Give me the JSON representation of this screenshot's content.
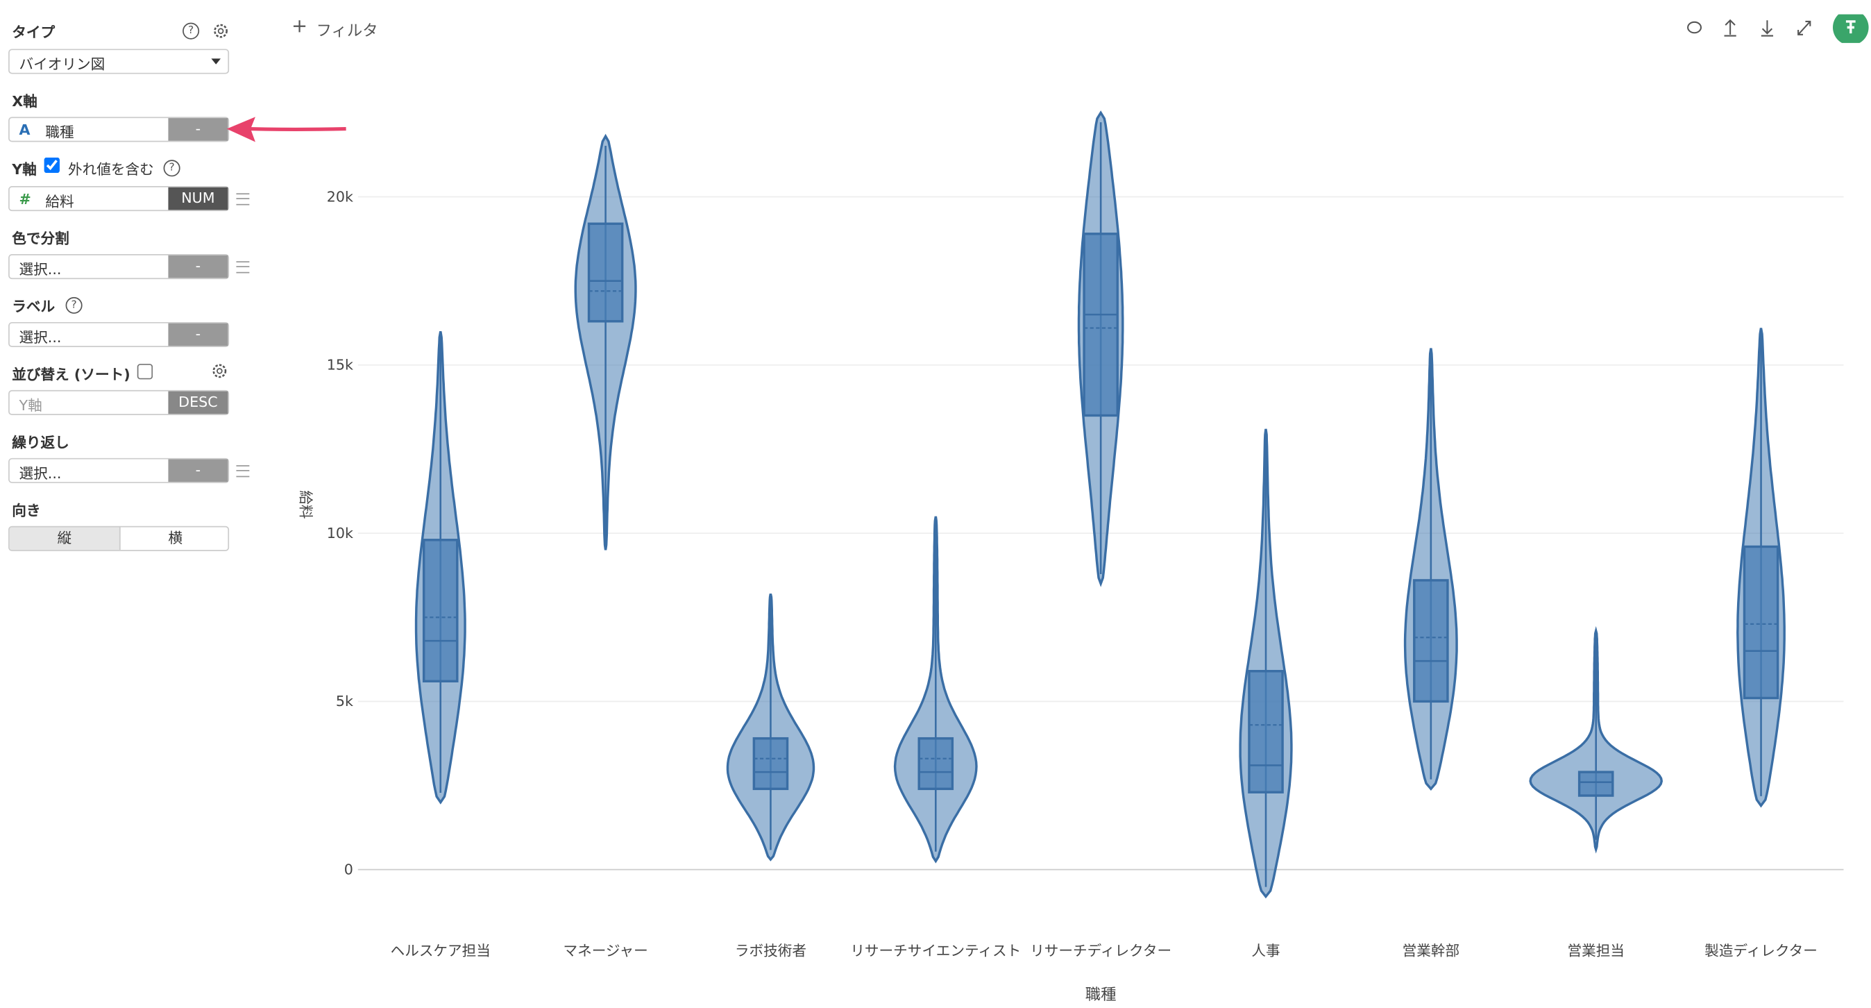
{
  "sidebar": {
    "type_label": "タイプ",
    "type_value": "バイオリン図",
    "x_label": "X軸",
    "x_field_icon": "A",
    "x_field": "職種",
    "x_button": "-",
    "y_label": "Y軸",
    "outliers_checked": true,
    "outliers_label": "外れ値を含む",
    "y_field_icon": "#",
    "y_field": "給料",
    "y_button": "NUM",
    "color_label": "色で分割",
    "color_placeholder": "選択...",
    "color_button": "-",
    "label_label": "ラベル",
    "label_placeholder": "選択...",
    "label_button": "-",
    "sort_label": "並び替え (ソート)",
    "sort_checked": false,
    "sort_placeholder": "Y軸",
    "sort_button": "DESC",
    "repeat_label": "繰り返し",
    "repeat_placeholder": "選択...",
    "repeat_button": "-",
    "orient_label": "向き",
    "orient_options": [
      "縦",
      "横"
    ]
  },
  "toolbar": {
    "filter": "フィルタ"
  },
  "chart_data": {
    "type": "violin",
    "x_label": "職種",
    "y_label": "給料",
    "color": "#3a6ea5",
    "categories": [
      "ヘルスケア担当",
      "マネージャー",
      "ラボ技術者",
      "リサーチサイエンティスト",
      "リサーチディレクター",
      "人事",
      "営業幹部",
      "営業担当",
      "製造ディレクター"
    ],
    "min": [
      2000,
      9500,
      300,
      250,
      8500,
      -800,
      2400,
      600,
      1900
    ],
    "q1": [
      5600,
      16300,
      2400,
      2400,
      13500,
      2300,
      5000,
      2200,
      5100
    ],
    "median": [
      6800,
      17500,
      2900,
      2900,
      16500,
      3100,
      6200,
      2600,
      6500
    ],
    "mean": [
      7500,
      17200,
      3300,
      3300,
      16100,
      4300,
      6900,
      2600,
      7300
    ],
    "q3": [
      9800,
      19200,
      3900,
      3900,
      18900,
      5900,
      8600,
      2900,
      9600
    ],
    "max": [
      16000,
      21800,
      8200,
      10500,
      22500,
      13100,
      15500,
      7100,
      16100
    ],
    "ylim": [
      -1500,
      23000
    ],
    "yticks": [
      0,
      {
        "value": 5000,
        "label": "5k"
      },
      {
        "value": 10000,
        "label": "10k"
      },
      {
        "value": 15000,
        "label": "15k"
      },
      {
        "value": 20000,
        "label": "20k"
      }
    ],
    "grid": true
  }
}
